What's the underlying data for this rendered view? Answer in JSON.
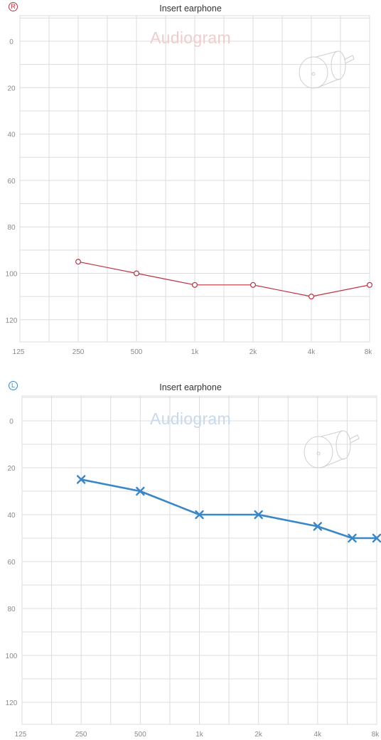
{
  "panels": [
    {
      "ear": "right",
      "badge": "R",
      "title": "Insert earphone",
      "watermark": "Audiogram",
      "accent": "#c0303f",
      "watermark_color": "#efcdcd",
      "marker": "circle",
      "icon": "insert-earphone-icon"
    },
    {
      "ear": "left",
      "badge": "L",
      "title": "Insert earphone",
      "watermark": "Audiogram",
      "accent": "#3a87c8",
      "watermark_color": "#c8d9ec",
      "marker": "cross",
      "icon": "insert-earphone-icon"
    }
  ],
  "chart_data": [
    {
      "type": "line",
      "ear": "right",
      "title": "Insert earphone",
      "x_tick_labels": [
        "125",
        "250",
        "500",
        "1k",
        "2k",
        "4k",
        "8k"
      ],
      "y_tick_labels": [
        "0",
        "20",
        "40",
        "60",
        "80",
        "100",
        "120"
      ],
      "ylim": [
        -10,
        130
      ],
      "y_inverted": true,
      "grid": true,
      "series": [
        {
          "x": [
            250,
            500,
            1000,
            2000,
            4000,
            8000
          ],
          "values": [
            95,
            100,
            105,
            105,
            110,
            105
          ]
        }
      ]
    },
    {
      "type": "line",
      "ear": "left",
      "title": "Insert earphone",
      "x_tick_labels": [
        "125",
        "250",
        "500",
        "1k",
        "2k",
        "4k",
        "8k"
      ],
      "y_tick_labels": [
        "0",
        "20",
        "40",
        "60",
        "80",
        "100",
        "120"
      ],
      "ylim": [
        -10,
        130
      ],
      "y_inverted": true,
      "grid": true,
      "series": [
        {
          "x": [
            250,
            500,
            1000,
            2000,
            4000,
            6000,
            8000
          ],
          "values": [
            25,
            30,
            40,
            40,
            45,
            50,
            50
          ]
        }
      ]
    }
  ]
}
